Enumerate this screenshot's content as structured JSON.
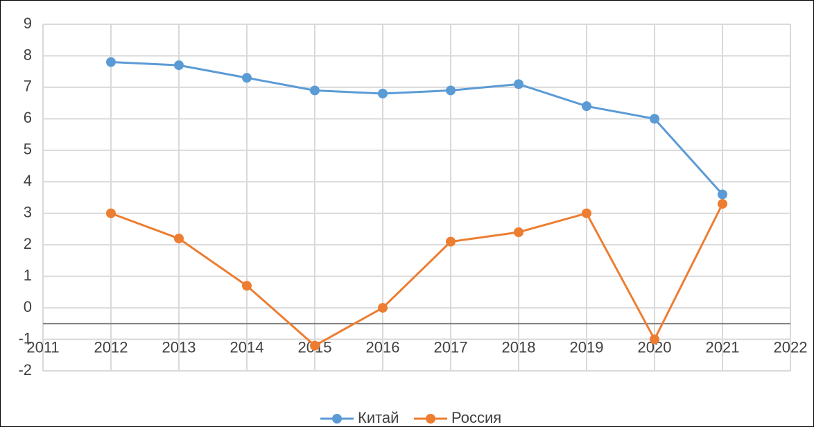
{
  "chart_data": {
    "type": "line",
    "x": [
      2012,
      2013,
      2014,
      2015,
      2016,
      2017,
      2018,
      2019,
      2020,
      2021
    ],
    "series": [
      {
        "name": "Китай",
        "color": "#5b9bd5",
        "values": [
          7.8,
          7.7,
          7.3,
          6.9,
          6.8,
          6.9,
          7.1,
          6.4,
          6.0,
          3.6
        ]
      },
      {
        "name": "Россия",
        "color": "#ed7d31",
        "values": [
          3.0,
          2.2,
          0.7,
          -1.2,
          0.0,
          2.1,
          2.4,
          3.0,
          -1.0,
          3.3
        ]
      }
    ],
    "xlim": [
      2011,
      2022
    ],
    "xticks": [
      2011,
      2012,
      2013,
      2014,
      2015,
      2016,
      2017,
      2018,
      2019,
      2020,
      2021,
      2022
    ],
    "ylim": [
      -2,
      9
    ],
    "yticks": [
      -2,
      -1,
      0,
      1,
      2,
      3,
      4,
      5,
      6,
      7,
      8,
      9
    ],
    "x_axis_crosses_at": -0.5,
    "grid": true,
    "legend": "bottom"
  }
}
